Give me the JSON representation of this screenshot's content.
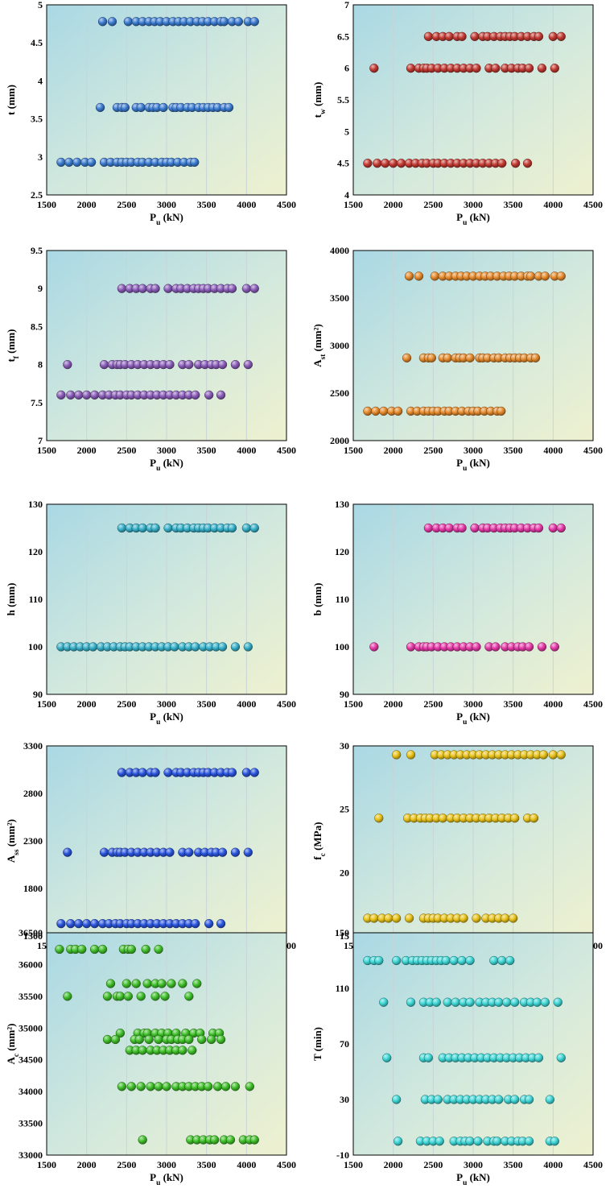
{
  "chart_data": [
    {
      "type": "scatter",
      "xlabel": "P_u (kN)",
      "ylabel": "t (mm)",
      "xlim": [
        1500,
        4500
      ],
      "ylim": [
        2.5,
        5
      ],
      "xticks": [
        "1500",
        "2000",
        "2500",
        "3000",
        "3500",
        "4000",
        "4500"
      ],
      "yticks": [
        "2.5",
        "3",
        "3.5",
        "4",
        "4.5",
        "5"
      ],
      "color": "#3b7bd0",
      "groups": [
        {
          "y": 4.78,
          "x": [
            2200,
            2320,
            2520,
            2620,
            2700,
            2780,
            2850,
            2920,
            3000,
            3080,
            3150,
            3220,
            3300,
            3380,
            3450,
            3520,
            3600,
            3680,
            3720,
            3820,
            3900,
            4020,
            4100
          ]
        },
        {
          "y": 3.65,
          "x": [
            2170,
            2380,
            2440,
            2480,
            2620,
            2680,
            2780,
            2830,
            2880,
            2960,
            3080,
            3120,
            3180,
            3260,
            3320,
            3400,
            3460,
            3520,
            3580,
            3640,
            3720,
            3780
          ]
        },
        {
          "y": 2.93,
          "x": [
            1680,
            1780,
            1880,
            1980,
            2060,
            2220,
            2300,
            2380,
            2440,
            2500,
            2560,
            2640,
            2700,
            2780,
            2860,
            2940,
            3000,
            3060,
            3140,
            3220,
            3300,
            3350
          ]
        }
      ]
    },
    {
      "type": "scatter",
      "xlabel": "P_u (kN)",
      "ylabel": "t_w (mm)",
      "xlim": [
        1500,
        4500
      ],
      "ylim": [
        4,
        7
      ],
      "xticks": [
        "1500",
        "2000",
        "2500",
        "3000",
        "3500",
        "4000",
        "4500"
      ],
      "yticks": [
        "4",
        "4.5",
        "5",
        "5.5",
        "6",
        "6.5",
        "7"
      ],
      "color": "#c23a32",
      "groups": [
        {
          "y": 6.5,
          "x": [
            2440,
            2540,
            2620,
            2700,
            2800,
            2860,
            3020,
            3120,
            3180,
            3260,
            3340,
            3400,
            3460,
            3520,
            3600,
            3680,
            3760,
            3820,
            4000,
            4100
          ]
        },
        {
          "y": 6.0,
          "x": [
            1760,
            2220,
            2320,
            2380,
            2420,
            2480,
            2560,
            2640,
            2720,
            2800,
            2880,
            2960,
            3040,
            3200,
            3280,
            3400,
            3480,
            3560,
            3620,
            3700,
            3860,
            4020
          ]
        },
        {
          "y": 4.5,
          "x": [
            1680,
            1800,
            1900,
            2000,
            2100,
            2200,
            2280,
            2360,
            2420,
            2500,
            2560,
            2640,
            2720,
            2800,
            2880,
            2960,
            3040,
            3120,
            3200,
            3280,
            3360,
            3530,
            3680
          ]
        }
      ]
    },
    {
      "type": "scatter",
      "xlabel": "P_u (kN)",
      "ylabel": "t_f (mm)",
      "xlim": [
        1500,
        4500
      ],
      "ylim": [
        7,
        9.5
      ],
      "xticks": [
        "1500",
        "2000",
        "2500",
        "3000",
        "3500",
        "4000",
        "4500"
      ],
      "yticks": [
        "7",
        "7.5",
        "8",
        "8.5",
        "9",
        "9.5"
      ],
      "color": "#8a5cb8",
      "groups": [
        {
          "y": 9.0,
          "x": [
            2440,
            2540,
            2620,
            2700,
            2800,
            2860,
            3020,
            3120,
            3180,
            3260,
            3340,
            3400,
            3460,
            3520,
            3600,
            3680,
            3760,
            3820,
            4000,
            4100
          ]
        },
        {
          "y": 8.0,
          "x": [
            1760,
            2220,
            2320,
            2380,
            2420,
            2480,
            2560,
            2640,
            2720,
            2800,
            2880,
            2960,
            3040,
            3200,
            3280,
            3400,
            3480,
            3560,
            3620,
            3700,
            3860,
            4020
          ]
        },
        {
          "y": 7.6,
          "x": [
            1680,
            1800,
            1900,
            2000,
            2100,
            2200,
            2280,
            2360,
            2420,
            2500,
            2560,
            2640,
            2720,
            2800,
            2880,
            2960,
            3040,
            3120,
            3200,
            3280,
            3360,
            3530,
            3680
          ]
        }
      ]
    },
    {
      "type": "scatter",
      "xlabel": "P_u (kN)",
      "ylabel": "A_st (mm²)",
      "xlim": [
        1500,
        4500
      ],
      "ylim": [
        2000,
        4000
      ],
      "xticks": [
        "1500",
        "2000",
        "2500",
        "3000",
        "3500",
        "4000",
        "4500"
      ],
      "yticks": [
        "2000",
        "2500",
        "3000",
        "3500",
        "4000"
      ],
      "color": "#e58a2c",
      "groups": [
        {
          "y": 3730,
          "x": [
            2200,
            2320,
            2520,
            2620,
            2700,
            2780,
            2850,
            2920,
            3000,
            3080,
            3150,
            3220,
            3300,
            3380,
            3450,
            3520,
            3600,
            3680,
            3720,
            3820,
            3900,
            4020,
            4100
          ]
        },
        {
          "y": 2870,
          "x": [
            2170,
            2380,
            2440,
            2480,
            2620,
            2680,
            2780,
            2830,
            2880,
            2960,
            3080,
            3120,
            3180,
            3260,
            3320,
            3400,
            3460,
            3520,
            3580,
            3640,
            3720,
            3780
          ]
        },
        {
          "y": 2310,
          "x": [
            1680,
            1780,
            1880,
            1980,
            2060,
            2220,
            2300,
            2380,
            2440,
            2500,
            2560,
            2640,
            2700,
            2780,
            2860,
            2940,
            3000,
            3060,
            3140,
            3220,
            3300,
            3350
          ]
        }
      ]
    },
    {
      "type": "scatter",
      "xlabel": "P_u (kN)",
      "ylabel": "h (mm)",
      "xlim": [
        1500,
        4500
      ],
      "ylim": [
        90,
        130
      ],
      "xticks": [
        "1500",
        "2000",
        "2500",
        "3000",
        "3500",
        "4000",
        "4500"
      ],
      "yticks": [
        "90",
        "100",
        "110",
        "120",
        "130"
      ],
      "color": "#36b0c8",
      "groups": [
        {
          "y": 125,
          "x": [
            2440,
            2540,
            2620,
            2700,
            2800,
            2860,
            3020,
            3120,
            3180,
            3260,
            3340,
            3400,
            3460,
            3520,
            3600,
            3680,
            3760,
            3820,
            4000,
            4100
          ]
        },
        {
          "y": 100,
          "x": [
            1680,
            1760,
            1840,
            1920,
            2000,
            2080,
            2180,
            2260,
            2340,
            2420,
            2480,
            2540,
            2620,
            2700,
            2780,
            2860,
            2940,
            3020,
            3100,
            3200,
            3280,
            3360,
            3460,
            3540,
            3620,
            3700,
            3860,
            4020
          ]
        }
      ]
    },
    {
      "type": "scatter",
      "xlabel": "P_u (kN)",
      "ylabel": "b (mm)",
      "xlim": [
        1500,
        4500
      ],
      "ylim": [
        90,
        130
      ],
      "xticks": [
        "1500",
        "2000",
        "2500",
        "3000",
        "3500",
        "4000",
        "4500"
      ],
      "yticks": [
        "90",
        "100",
        "110",
        "120",
        "130"
      ],
      "color": "#e63aa8",
      "groups": [
        {
          "y": 125,
          "x": [
            2440,
            2540,
            2620,
            2700,
            2800,
            2860,
            3020,
            3120,
            3180,
            3260,
            3340,
            3400,
            3460,
            3520,
            3600,
            3680,
            3760,
            3820,
            4000,
            4100
          ]
        },
        {
          "y": 100,
          "x": [
            1760,
            2220,
            2320,
            2380,
            2420,
            2480,
            2560,
            2640,
            2720,
            2800,
            2880,
            2960,
            3040,
            3200,
            3280,
            3400,
            3480,
            3560,
            3620,
            3700,
            3860,
            4020
          ]
        }
      ]
    },
    {
      "type": "scatter",
      "xlabel": "P_u (kN)",
      "ylabel": "A_ss (mm²)",
      "xlim": [
        1500,
        4500
      ],
      "ylim": [
        1300,
        3300
      ],
      "xticks": [
        "1500",
        "2000",
        "2500",
        "3000",
        "3500",
        "4000",
        "4500"
      ],
      "yticks": [
        "1300",
        "1800",
        "2300",
        "2800",
        "3300"
      ],
      "color": "#2a55dd",
      "groups": [
        {
          "y": 3020,
          "x": [
            2440,
            2540,
            2620,
            2700,
            2800,
            2860,
            3020,
            3120,
            3180,
            3260,
            3340,
            3400,
            3460,
            3520,
            3600,
            3680,
            3760,
            3820,
            4000,
            4100
          ]
        },
        {
          "y": 2180,
          "x": [
            1760,
            2220,
            2320,
            2380,
            2420,
            2480,
            2560,
            2640,
            2720,
            2800,
            2880,
            2960,
            3040,
            3200,
            3280,
            3400,
            3480,
            3560,
            3620,
            3700,
            3860,
            4020
          ]
        },
        {
          "y": 1430,
          "x": [
            1680,
            1800,
            1900,
            2000,
            2100,
            2200,
            2280,
            2360,
            2420,
            2500,
            2560,
            2640,
            2720,
            2800,
            2880,
            2960,
            3040,
            3120,
            3200,
            3280,
            3360,
            3530,
            3680
          ]
        }
      ]
    },
    {
      "type": "scatter",
      "xlabel": "P_u (kN)",
      "ylabel": "f_c (MPa)",
      "xlim": [
        1500,
        4500
      ],
      "ylim": [
        15,
        30
      ],
      "xticks": [
        "1500",
        "2000",
        "2500",
        "3000",
        "3500",
        "4000",
        "4500"
      ],
      "yticks": [
        "15",
        "20",
        "25",
        "30"
      ],
      "color": "#e8c21a",
      "groups": [
        {
          "y": 29.3,
          "x": [
            2040,
            2220,
            2520,
            2600,
            2680,
            2760,
            2840,
            2920,
            3000,
            3080,
            3160,
            3240,
            3320,
            3400,
            3480,
            3560,
            3640,
            3720,
            3800,
            3880,
            4000,
            4100
          ]
        },
        {
          "y": 24.3,
          "x": [
            1820,
            2180,
            2260,
            2340,
            2400,
            2460,
            2540,
            2620,
            2720,
            2800,
            2880,
            2960,
            3040,
            3120,
            3200,
            3280,
            3360,
            3440,
            3520,
            3680,
            3760
          ]
        },
        {
          "y": 16.4,
          "x": [
            1680,
            1760,
            1860,
            1940,
            2040,
            2200,
            2380,
            2440,
            2500,
            2560,
            2640,
            2720,
            2800,
            2880,
            3040,
            3160,
            3240,
            3320,
            3400,
            3500
          ]
        }
      ]
    },
    {
      "type": "scatter",
      "xlabel": "P_u (kN)",
      "ylabel": "A_c (mm²)",
      "xlim": [
        1500,
        4500
      ],
      "ylim": [
        33000,
        36500
      ],
      "xticks": [
        "1500",
        "2000",
        "2500",
        "3000",
        "3500",
        "4000",
        "4500"
      ],
      "yticks": [
        "33000",
        "33500",
        "34000",
        "34500",
        "35000",
        "35500",
        "36000",
        "36500"
      ],
      "color": "#3fbf2a",
      "groups": [
        {
          "y": 36240,
          "x": [
            1660,
            1800,
            1860,
            1940,
            2100,
            2200,
            2460,
            2520,
            2560,
            2740,
            2900
          ]
        },
        {
          "y": 35700,
          "x": [
            2300,
            2500,
            2620,
            2760,
            2860,
            2940,
            3060,
            3200,
            3380
          ]
        },
        {
          "y": 35500,
          "x": [
            1760,
            2260,
            2380,
            2420,
            2520,
            2680,
            2860,
            2980,
            3280
          ]
        },
        {
          "y": 34920,
          "x": [
            2420,
            2640,
            2720,
            2760,
            2860,
            2940,
            3020,
            3120,
            3240,
            3340,
            3420,
            3580,
            3660
          ]
        },
        {
          "y": 34820,
          "x": [
            2260,
            2360,
            2600,
            2660,
            2780,
            2900,
            3000,
            3060,
            3140,
            3200,
            3280,
            3440,
            3560,
            3680
          ]
        },
        {
          "y": 34650,
          "x": [
            2540,
            2620,
            2700,
            2800,
            2880,
            2960,
            3040,
            3120,
            3200,
            3320
          ]
        },
        {
          "y": 34080,
          "x": [
            2440,
            2560,
            2680,
            2800,
            2900,
            3000,
            3120,
            3200,
            3280,
            3360,
            3440,
            3520,
            3640,
            3740,
            3860,
            4040
          ]
        },
        {
          "y": 33240,
          "x": [
            2700,
            3300,
            3380,
            3460,
            3540,
            3600,
            3720,
            3800,
            3960,
            4040,
            4100
          ]
        }
      ]
    },
    {
      "type": "scatter",
      "xlabel": "P_u (kN)",
      "ylabel": "T (min)",
      "xlim": [
        1500,
        4500
      ],
      "ylim": [
        -10,
        150
      ],
      "xticks": [
        "1500",
        "2000",
        "2500",
        "3000",
        "3500",
        "4000",
        "4500"
      ],
      "yticks": [
        "-10",
        "30",
        "70",
        "110",
        "150"
      ],
      "color": "#3fd6d6",
      "groups": [
        {
          "y": 130,
          "x": [
            1680,
            1760,
            1820,
            2040,
            2160,
            2240,
            2300,
            2360,
            2420,
            2480,
            2540,
            2600,
            2660,
            2760,
            2860,
            2960,
            3260,
            3360,
            3460
          ]
        },
        {
          "y": 100,
          "x": [
            1880,
            2220,
            2380,
            2460,
            2540,
            2680,
            2780,
            2880,
            2960,
            3080,
            3160,
            3240,
            3320,
            3420,
            3520,
            3640,
            3720,
            3800,
            3900,
            4060
          ]
        },
        {
          "y": 60,
          "x": [
            1920,
            2380,
            2440,
            2620,
            2700,
            2780,
            2860,
            2940,
            3020,
            3100,
            3180,
            3260,
            3340,
            3420,
            3500,
            3580,
            3660,
            3740,
            3820,
            4100
          ]
        },
        {
          "y": 30,
          "x": [
            2040,
            2400,
            2480,
            2560,
            2680,
            2760,
            2840,
            2920,
            3000,
            3080,
            3160,
            3240,
            3320,
            3440,
            3520,
            3640,
            3700,
            3960
          ]
        },
        {
          "y": 0,
          "x": [
            2060,
            2340,
            2420,
            2500,
            2580,
            2760,
            2840,
            2900,
            2960,
            3060,
            3180,
            3260,
            3300,
            3400,
            3480,
            3560,
            3620,
            3700,
            3960,
            4020
          ]
        }
      ]
    }
  ]
}
